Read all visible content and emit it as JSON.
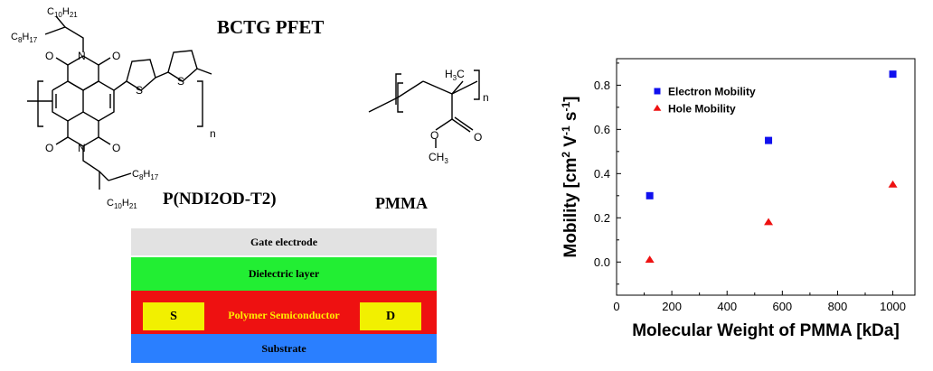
{
  "header": {
    "title": "BCTG PFET"
  },
  "structures": {
    "polymer1": {
      "name": "P(NDI2OD-T2)",
      "sub_top_a": "C",
      "sub_top_a_idx": "10",
      "sub_top_a_h": "H",
      "sub_top_a_hidx": "21",
      "sub_top_b": "C",
      "sub_top_b_idx": "8",
      "sub_top_b_h": "H",
      "sub_top_b_hidx": "17",
      "sub_bot_a": "C",
      "sub_bot_a_idx": "8",
      "sub_bot_a_h": "H",
      "sub_bot_a_hidx": "17",
      "sub_bot_b": "C",
      "sub_bot_b_idx": "10",
      "sub_bot_b_h": "H",
      "sub_bot_b_hidx": "21",
      "atom_n": "N",
      "atom_o": "O",
      "atom_s": "S",
      "repeat": "n"
    },
    "polymer2": {
      "name": "PMMA",
      "methyl": "H",
      "methyl_c": "C",
      "methyl_idx": "3",
      "ester_o": "O",
      "ester_methyl": "CH",
      "ester_methyl_idx": "3",
      "repeat": "n"
    }
  },
  "device": {
    "gate": "Gate electrode",
    "dielectric": "Dielectric layer",
    "semiconductor": "Polymer Semiconductor",
    "source": "S",
    "drain": "D",
    "substrate": "Substrate",
    "colors": {
      "gate": "#e2e2e2",
      "dielectric": "#22ee33",
      "semiconductor": "#ee1111",
      "electrode": "#f2f000",
      "substrate": "#2a7fff"
    }
  },
  "chart_data": {
    "type": "scatter",
    "xlabel": "Molecular Weight of PMMA [kDa]",
    "ylabel_main": "Mobility [cm",
    "ylabel_sup1": "2",
    "ylabel_v": " V",
    "ylabel_sup2": "-1",
    "ylabel_s": " s",
    "ylabel_sup3": "-1",
    "ylabel_end": "]",
    "xlim": [
      0,
      1080
    ],
    "ylim": [
      -0.15,
      0.92
    ],
    "xticks": [
      0,
      200,
      400,
      600,
      800,
      1000
    ],
    "yticks": [
      0.0,
      0.2,
      0.4,
      0.6,
      0.8
    ],
    "xtick_labels": [
      "0",
      "200",
      "400",
      "600",
      "800",
      "1000"
    ],
    "ytick_labels": [
      "0.0",
      "0.2",
      "0.4",
      "0.6",
      "0.8"
    ],
    "legend_position": "top-left",
    "series": [
      {
        "name": "Electron Mobility",
        "marker": "square",
        "color": "#1010ee",
        "x": [
          120,
          550,
          1000
        ],
        "y": [
          0.3,
          0.55,
          0.85
        ]
      },
      {
        "name": "Hole Mobility",
        "marker": "triangle",
        "color": "#ee1111",
        "x": [
          120,
          550,
          1000
        ],
        "y": [
          0.01,
          0.18,
          0.35
        ]
      }
    ]
  }
}
